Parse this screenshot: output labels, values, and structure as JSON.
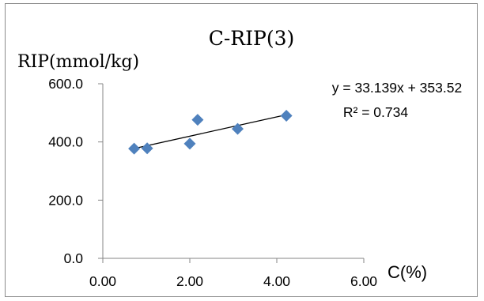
{
  "chart_data": {
    "type": "scatter",
    "title": "C-RIP(3)",
    "xlabel": "C(%)",
    "ylabel": "RIP(mmol/kg)",
    "xlim": [
      0,
      6
    ],
    "ylim": [
      0,
      600
    ],
    "x_ticks": [
      "0.00",
      "2.00",
      "4.00",
      "6.00"
    ],
    "y_ticks": [
      "0.0",
      "200.0",
      "400.0",
      "600.0"
    ],
    "x_tick_values": [
      0,
      2,
      4,
      6
    ],
    "y_tick_values": [
      0,
      200,
      400,
      600
    ],
    "grid": false,
    "legend": "none",
    "marker_color": "#4f81bd",
    "trendline_color": "#000000",
    "points": [
      {
        "x": 0.72,
        "y": 377
      },
      {
        "x": 1.02,
        "y": 378
      },
      {
        "x": 2.0,
        "y": 394
      },
      {
        "x": 2.18,
        "y": 476
      },
      {
        "x": 3.1,
        "y": 445
      },
      {
        "x": 4.22,
        "y": 490
      }
    ],
    "trendline": {
      "type": "linear",
      "slope": 33.139,
      "intercept": 353.52,
      "x_range": [
        0.72,
        4.22
      ],
      "equation": "y = 33.139x + 353.52",
      "r_squared": "R² = 0.734"
    }
  }
}
